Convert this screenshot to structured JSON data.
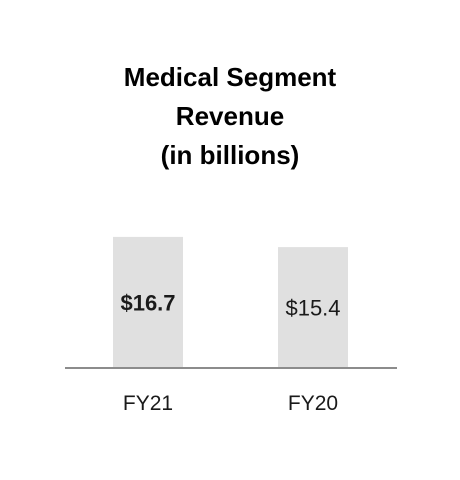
{
  "chart_data": {
    "type": "bar",
    "title": [
      "Medical Segment",
      "Revenue",
      "(in billions)"
    ],
    "categories": [
      "FY21",
      "FY20"
    ],
    "values": [
      16.7,
      15.4
    ],
    "value_labels": [
      "$16.7",
      "$15.4"
    ],
    "emphasized": [
      true,
      false
    ],
    "ylim": [
      0,
      20
    ],
    "xlabel": "",
    "ylabel": "",
    "grid": false,
    "colors": {
      "bar": "#e0e0e0",
      "axis": "#8c8c8c",
      "text": "#1a1a1a"
    }
  }
}
